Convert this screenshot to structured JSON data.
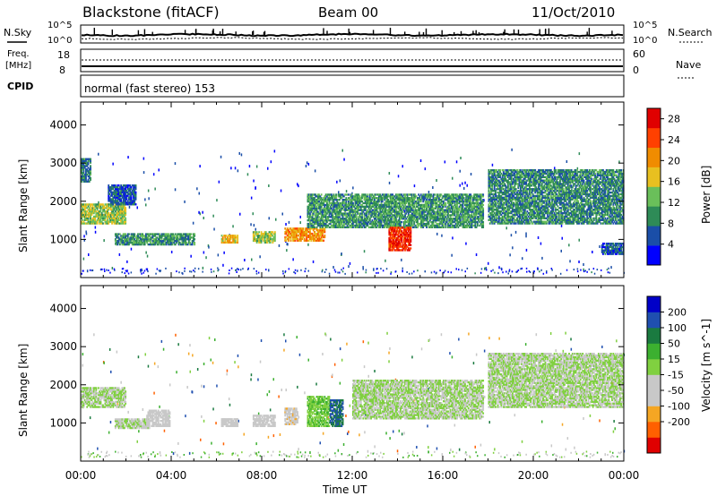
{
  "header": {
    "station": "Blackstone (fitACF)",
    "beam": "Beam 00",
    "date": "11/Oct/2010"
  },
  "top_panels": {
    "nsky_label": "N.Sky",
    "nsearch_label": "N.Search",
    "noise_ticks_left": [
      "10^5",
      "10^0"
    ],
    "noise_ticks_right": [
      "10^5",
      "10^0"
    ],
    "freq_label": "Freq.",
    "freq_unit": "[MHz]",
    "freq_ticks": [
      "18",
      "8"
    ],
    "nave_label": "Nave",
    "nave_ticks": [
      "60",
      "0"
    ],
    "cpid_label": "CPID",
    "cpid_text": "normal (fast stereo) 153"
  },
  "colors": {
    "power_scale": [
      "#0000ff",
      "#1a4ea8",
      "#2e8b57",
      "#6abf5a",
      "#e8c020",
      "#f08c00",
      "#ff4000",
      "#e00000"
    ],
    "velocity_scale": [
      "#e00000",
      "#ff6000",
      "#f5a623",
      "#c8c8c8",
      "#c8c8c8",
      "#80d040",
      "#3cb030",
      "#1a7a40",
      "#1f4fb0",
      "#0000c8"
    ],
    "ground_scatter": "#bebebe"
  },
  "chart_data": [
    {
      "type": "heatmap",
      "name_on_plot": "Power",
      "ylabel": "Slant Range [km]",
      "xlabel": "Time UT",
      "x_ticks": [
        "00:00",
        "04:00",
        "08:00",
        "12:00",
        "16:00",
        "20:00",
        "00:00"
      ],
      "x_range_hours": [
        0,
        24
      ],
      "y_ticks": [
        1000,
        2000,
        3000,
        4000
      ],
      "ylim": [
        0,
        4600
      ],
      "colorbar_label": "Power [dB]",
      "colorbar_ticks": [
        4,
        8,
        12,
        16,
        20,
        24,
        28
      ],
      "colorbar_range": [
        0,
        30
      ],
      "echo_regions": [
        {
          "t_start": 0.0,
          "t_end": 0.4,
          "r_low": 2500,
          "r_high": 3100,
          "power": 8
        },
        {
          "t_start": 0.0,
          "t_end": 2.0,
          "r_low": 1400,
          "r_high": 1900,
          "power": 14
        },
        {
          "t_start": 1.2,
          "t_end": 2.4,
          "r_low": 1900,
          "r_high": 2400,
          "power": 6
        },
        {
          "t_start": 1.5,
          "t_end": 5.0,
          "r_low": 850,
          "r_high": 1150,
          "power": 10
        },
        {
          "t_start": 6.2,
          "t_end": 6.9,
          "r_low": 900,
          "r_high": 1100,
          "power": 18
        },
        {
          "t_start": 7.6,
          "t_end": 8.6,
          "r_low": 900,
          "r_high": 1200,
          "power": 14
        },
        {
          "t_start": 9.0,
          "t_end": 10.8,
          "r_low": 950,
          "r_high": 1300,
          "power": 20
        },
        {
          "t_start": 10.0,
          "t_end": 17.8,
          "r_low": 1300,
          "r_high": 2200,
          "power": 10
        },
        {
          "t_start": 13.6,
          "t_end": 14.6,
          "r_low": 700,
          "r_high": 1300,
          "power": 26
        },
        {
          "t_start": 18.0,
          "t_end": 24.0,
          "r_low": 1400,
          "r_high": 2800,
          "power": 9
        },
        {
          "t_start": 23.0,
          "t_end": 24.0,
          "r_low": 600,
          "r_high": 900,
          "power": 6
        }
      ]
    },
    {
      "type": "heatmap",
      "name_on_plot": "Velocity",
      "ylabel": "Slant Range [km]",
      "xlabel": "Time UT",
      "x_ticks": [
        "00:00",
        "04:00",
        "08:00",
        "12:00",
        "16:00",
        "20:00",
        "00:00"
      ],
      "x_range_hours": [
        0,
        24
      ],
      "y_ticks": [
        1000,
        2000,
        3000,
        4000
      ],
      "ylim": [
        0,
        4600
      ],
      "colorbar_label": "Velocity [m s^-1]",
      "colorbar_ticks": [
        200,
        100,
        50,
        15,
        -15,
        -50,
        -100,
        -200
      ],
      "colorbar_range": [
        -250,
        250
      ],
      "echo_regions": [
        {
          "t_start": 0.0,
          "t_end": 2.0,
          "r_low": 1400,
          "r_high": 1900,
          "velocity": 0
        },
        {
          "t_start": 1.5,
          "t_end": 3.0,
          "r_low": 850,
          "r_high": 1100,
          "velocity": 0
        },
        {
          "t_start": 2.9,
          "t_end": 3.9,
          "r_low": 900,
          "r_high": 1350,
          "velocity": -60
        },
        {
          "t_start": 6.2,
          "t_end": 6.9,
          "r_low": 900,
          "r_high": 1100,
          "velocity": -60
        },
        {
          "t_start": 7.6,
          "t_end": 8.6,
          "r_low": 900,
          "r_high": 1200,
          "velocity": -60
        },
        {
          "t_start": 9.0,
          "t_end": 9.6,
          "r_low": 950,
          "r_high": 1400,
          "velocity": -80
        },
        {
          "t_start": 10.0,
          "t_end": 11.0,
          "r_low": 900,
          "r_high": 1700,
          "velocity": 40
        },
        {
          "t_start": 11.0,
          "t_end": 11.6,
          "r_low": 900,
          "r_high": 1600,
          "velocity": 150
        },
        {
          "t_start": 12.0,
          "t_end": 17.8,
          "r_low": 1100,
          "r_high": 2100,
          "velocity": 0
        },
        {
          "t_start": 18.0,
          "t_end": 24.0,
          "r_low": 1400,
          "r_high": 2800,
          "velocity": 0
        }
      ]
    }
  ]
}
